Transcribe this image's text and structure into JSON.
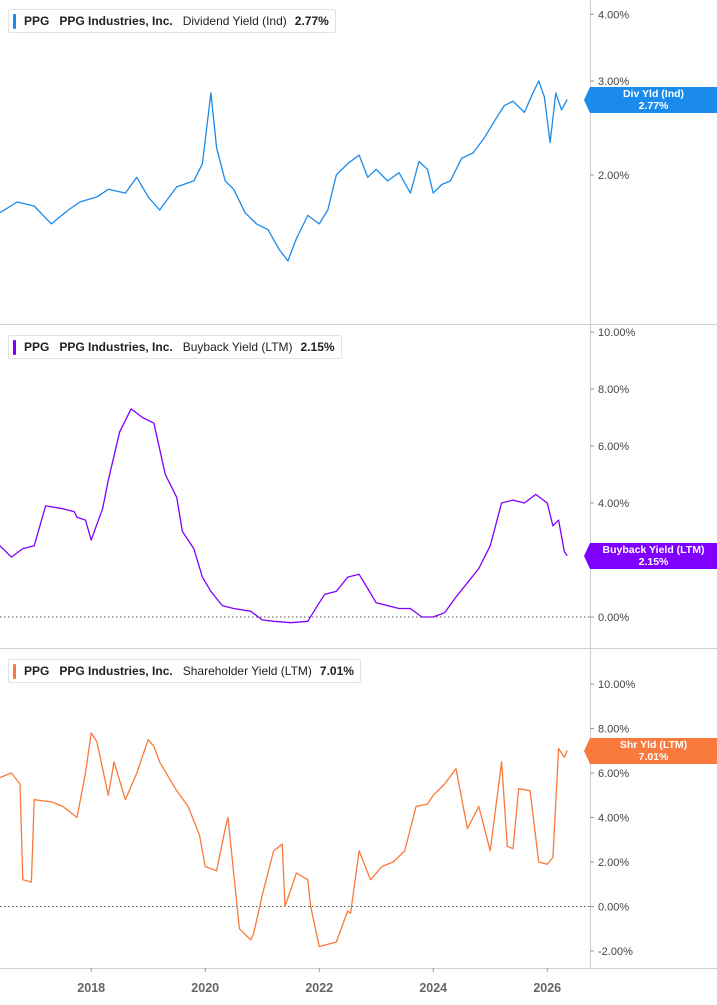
{
  "panels": [
    {
      "ticker": "PPG",
      "company": "PPG Industries, Inc.",
      "metric": "Dividend Yield (Ind)",
      "value": "2.77%",
      "color": "#1a8bea",
      "flag_label": "Div Yld (Ind)",
      "flag_value": "2.77%"
    },
    {
      "ticker": "PPG",
      "company": "PPG Industries, Inc.",
      "metric": "Buyback Yield (LTM)",
      "value": "2.15%",
      "color": "#8000ff",
      "flag_label": "Buyback Yield (LTM)",
      "flag_value": "2.15%"
    },
    {
      "ticker": "PPG",
      "company": "PPG Industries, Inc.",
      "metric": "Shareholder Yield (LTM)",
      "value": "7.01%",
      "color": "#f97a3c",
      "flag_label": "Shr Yld (LTM)",
      "flag_value": "7.01%"
    }
  ],
  "chart_data": [
    {
      "type": "line",
      "series": [
        {
          "name": "Dividend Yield (Ind)",
          "x": [
            2016.4,
            2016.7,
            2017.0,
            2017.3,
            2017.6,
            2017.8,
            2018.1,
            2018.3,
            2018.6,
            2018.8,
            2019.0,
            2019.2,
            2019.5,
            2019.8,
            2019.95,
            2020.1,
            2020.2,
            2020.35,
            2020.5,
            2020.7,
            2020.9,
            2021.1,
            2021.3,
            2021.45,
            2021.6,
            2021.8,
            2022.0,
            2022.15,
            2022.3,
            2022.5,
            2022.7,
            2022.85,
            2023.0,
            2023.2,
            2023.4,
            2023.6,
            2023.75,
            2023.9,
            2024.0,
            2024.15,
            2024.3,
            2024.5,
            2024.7,
            2024.9,
            2025.1,
            2025.25,
            2025.4,
            2025.6,
            2025.75,
            2025.85,
            2025.95,
            2026.05,
            2026.15,
            2026.25,
            2026.35
          ],
          "values": [
            1.7,
            1.78,
            1.75,
            1.62,
            1.72,
            1.78,
            1.82,
            1.88,
            1.85,
            1.98,
            1.82,
            1.72,
            1.9,
            1.95,
            2.1,
            2.85,
            2.25,
            1.95,
            1.88,
            1.7,
            1.62,
            1.58,
            1.45,
            1.38,
            1.52,
            1.68,
            1.62,
            1.72,
            2.0,
            2.1,
            2.18,
            1.98,
            2.05,
            1.95,
            2.02,
            1.85,
            2.12,
            2.05,
            1.85,
            1.92,
            1.95,
            2.15,
            2.2,
            2.35,
            2.55,
            2.7,
            2.75,
            2.62,
            2.85,
            3.0,
            2.8,
            2.3,
            2.85,
            2.65,
            2.77
          ]
        }
      ],
      "y_ticks": [
        "2.00%",
        "3.00%",
        "4.00%"
      ],
      "y_scale": "log"
    },
    {
      "type": "line",
      "series": [
        {
          "name": "Buyback Yield (LTM)",
          "x": [
            2016.4,
            2016.6,
            2016.8,
            2017.0,
            2017.2,
            2017.5,
            2017.7,
            2017.75,
            2017.9,
            2018.0,
            2018.2,
            2018.3,
            2018.5,
            2018.7,
            2018.9,
            2019.1,
            2019.3,
            2019.5,
            2019.6,
            2019.8,
            2019.95,
            2020.1,
            2020.3,
            2020.5,
            2020.8,
            2021.0,
            2021.2,
            2021.5,
            2021.8,
            2022.0,
            2022.1,
            2022.3,
            2022.5,
            2022.7,
            2022.85,
            2023.0,
            2023.2,
            2023.4,
            2023.6,
            2023.8,
            2024.0,
            2024.2,
            2024.4,
            2024.6,
            2024.8,
            2025.0,
            2025.2,
            2025.4,
            2025.6,
            2025.8,
            2026.0,
            2026.1,
            2026.2,
            2026.3,
            2026.35
          ],
          "values": [
            2.5,
            2.1,
            2.4,
            2.5,
            3.9,
            3.8,
            3.7,
            3.5,
            3.4,
            2.7,
            3.8,
            4.8,
            6.5,
            7.3,
            7.0,
            6.8,
            5.0,
            4.2,
            3.0,
            2.4,
            1.4,
            0.9,
            0.4,
            0.3,
            0.2,
            -0.1,
            -0.15,
            -0.2,
            -0.15,
            0.5,
            0.8,
            0.9,
            1.4,
            1.5,
            1.0,
            0.5,
            0.4,
            0.3,
            0.3,
            0.0,
            0.0,
            0.15,
            0.7,
            1.2,
            1.7,
            2.5,
            4.0,
            4.1,
            4.0,
            4.3,
            4.0,
            3.2,
            3.4,
            2.3,
            2.15
          ]
        }
      ],
      "y_ticks": [
        "0.00%",
        "2.00%",
        "4.00%",
        "6.00%",
        "8.00%",
        "10.00%"
      ],
      "ylim": [
        -0.3,
        10.0
      ]
    },
    {
      "type": "line",
      "series": [
        {
          "name": "Shareholder Yield (LTM)",
          "x": [
            2016.4,
            2016.6,
            2016.75,
            2016.8,
            2016.95,
            2017.0,
            2017.3,
            2017.5,
            2017.75,
            2017.9,
            2018.0,
            2018.1,
            2018.3,
            2018.4,
            2018.6,
            2018.8,
            2019.0,
            2019.1,
            2019.2,
            2019.5,
            2019.7,
            2019.9,
            2020.0,
            2020.2,
            2020.35,
            2020.4,
            2020.6,
            2020.8,
            2020.85,
            2021.0,
            2021.2,
            2021.35,
            2021.4,
            2021.6,
            2021.8,
            2021.85,
            2022.0,
            2022.3,
            2022.5,
            2022.55,
            2022.7,
            2022.9,
            2023.1,
            2023.3,
            2023.5,
            2023.7,
            2023.9,
            2024.0,
            2024.2,
            2024.4,
            2024.6,
            2024.8,
            2025.0,
            2025.2,
            2025.3,
            2025.4,
            2025.5,
            2025.7,
            2025.85,
            2026.0,
            2026.1,
            2026.2,
            2026.3,
            2026.35
          ],
          "values": [
            5.8,
            6.0,
            5.5,
            1.2,
            1.1,
            4.8,
            4.7,
            4.5,
            4.0,
            6.0,
            7.8,
            7.4,
            5.0,
            6.5,
            4.8,
            6.0,
            7.5,
            7.2,
            6.5,
            5.2,
            4.5,
            3.2,
            1.8,
            1.6,
            3.5,
            4.0,
            -1.0,
            -1.5,
            -1.2,
            0.5,
            2.5,
            2.8,
            0.0,
            1.5,
            1.2,
            0.0,
            -1.8,
            -1.6,
            -0.2,
            -0.3,
            2.5,
            1.2,
            1.8,
            2.0,
            2.5,
            4.5,
            4.6,
            5.0,
            5.5,
            6.2,
            3.5,
            4.5,
            2.5,
            6.5,
            2.7,
            2.6,
            5.3,
            5.2,
            2.0,
            1.9,
            2.2,
            7.1,
            6.7,
            7.01
          ]
        }
      ],
      "y_ticks": [
        "-2.00%",
        "0.00%",
        "2.00%",
        "4.00%",
        "6.00%",
        "8.00%",
        "10.00%"
      ],
      "ylim": [
        -2.5,
        10.7
      ]
    }
  ],
  "x_axis": {
    "ticks": [
      "2018",
      "2020",
      "2022",
      "2024",
      "2026"
    ],
    "xlim": [
      2016.4,
      2026.75
    ]
  }
}
